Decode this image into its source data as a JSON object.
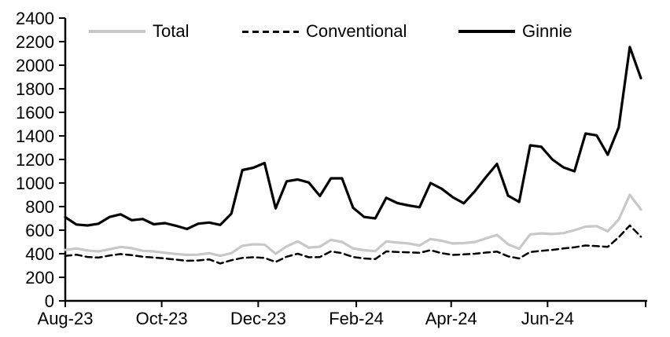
{
  "chart_data": {
    "type": "line",
    "title": "",
    "xlabel": "",
    "ylabel": "",
    "ylim": [
      0,
      2400
    ],
    "grid": false,
    "legend_position": "top",
    "x_unit": "week",
    "y_ticks": [
      0,
      200,
      400,
      600,
      800,
      1000,
      1200,
      1400,
      1600,
      1800,
      2000,
      2200,
      2400
    ],
    "x_ticks": [
      {
        "label": "Aug-23",
        "week": 0
      },
      {
        "label": "Oct-23",
        "week": 8.71
      },
      {
        "label": "Dec-23",
        "week": 17.43
      },
      {
        "label": "Feb-24",
        "week": 26.29
      },
      {
        "label": "Apr-24",
        "week": 34.86
      },
      {
        "label": "Jun-24",
        "week": 43.57
      },
      {
        "label": "",
        "week": 52.43
      }
    ],
    "series": [
      {
        "name": "Total",
        "color": "#c8c8c8",
        "style": "solid",
        "values": [
          432,
          445,
          428,
          420,
          438,
          458,
          447,
          425,
          420,
          408,
          398,
          390,
          392,
          405,
          382,
          405,
          468,
          480,
          478,
          400,
          462,
          505,
          452,
          460,
          518,
          500,
          445,
          430,
          422,
          505,
          495,
          487,
          470,
          525,
          510,
          487,
          490,
          500,
          530,
          560,
          480,
          442,
          565,
          573,
          567,
          575,
          600,
          630,
          635,
          590,
          690,
          900,
          775
        ]
      },
      {
        "name": "Conventional",
        "color": "#000000",
        "style": "dashed",
        "values": [
          382,
          392,
          373,
          367,
          385,
          397,
          388,
          375,
          368,
          360,
          350,
          340,
          343,
          352,
          317,
          345,
          365,
          370,
          365,
          330,
          375,
          400,
          370,
          372,
          420,
          405,
          372,
          360,
          355,
          420,
          415,
          412,
          408,
          430,
          405,
          390,
          395,
          400,
          410,
          418,
          378,
          360,
          415,
          425,
          433,
          445,
          455,
          470,
          465,
          458,
          540,
          640,
          545
        ]
      },
      {
        "name": "Ginnie",
        "color": "#000000",
        "style": "solid",
        "values": [
          710,
          648,
          640,
          655,
          712,
          735,
          685,
          695,
          650,
          660,
          637,
          610,
          655,
          665,
          645,
          740,
          1110,
          1130,
          1170,
          785,
          1015,
          1030,
          1005,
          890,
          1040,
          1040,
          790,
          712,
          700,
          875,
          830,
          810,
          795,
          1000,
          952,
          880,
          828,
          930,
          1050,
          1163,
          893,
          840,
          1320,
          1308,
          1200,
          1133,
          1100,
          1420,
          1405,
          1240,
          1473,
          2155,
          1890
        ]
      }
    ]
  }
}
